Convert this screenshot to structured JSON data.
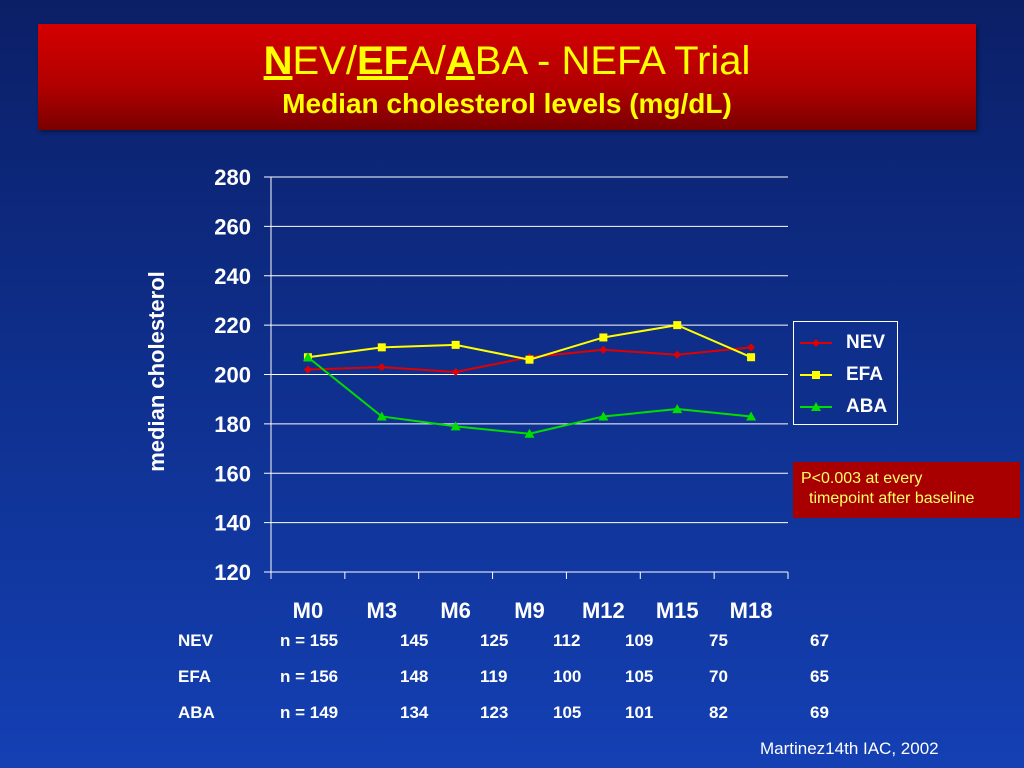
{
  "title": {
    "p1": "N",
    "p2": "EV/",
    "p3": "EF",
    "p4": "A/",
    "p5": "A",
    "p6": "BA - NEFA Trial",
    "subtitle": "Median cholesterol levels (mg/dL)"
  },
  "chart_data": {
    "type": "line",
    "categories": [
      "M0",
      "M3",
      "M6",
      "M9",
      "M12",
      "M15",
      "M18"
    ],
    "ylabel": "median cholesterol",
    "xlabel": "",
    "ylim": [
      120,
      280
    ],
    "yticks": [
      "280",
      "260",
      "240",
      "220",
      "200",
      "180",
      "160",
      "140",
      "120"
    ],
    "grid": "horizontal",
    "legend_position": "right",
    "series": [
      {
        "name": "NEV",
        "color": "#e00000",
        "marker": "diamond",
        "values": [
          202,
          203,
          201,
          207,
          210,
          208,
          211
        ]
      },
      {
        "name": "EFA",
        "color": "#ffff00",
        "marker": "square",
        "values": [
          207,
          211,
          212,
          206,
          215,
          220,
          207
        ]
      },
      {
        "name": "ABA",
        "color": "#00dd00",
        "marker": "triangle",
        "values": [
          207,
          183,
          179,
          176,
          183,
          186,
          183
        ]
      }
    ]
  },
  "annotation": {
    "line1": "P<0.003 at every",
    "line2": "timepoint after baseline"
  },
  "n_table": {
    "rows": [
      {
        "label": "NEV",
        "cells": [
          "n = 155",
          "145",
          "125",
          "112",
          "109",
          "75",
          "67"
        ]
      },
      {
        "label": "EFA",
        "cells": [
          "n = 156",
          "148",
          "119",
          "100",
          "105",
          "70",
          "65"
        ]
      },
      {
        "label": "ABA",
        "cells": [
          "n = 149",
          "134",
          "123",
          "105",
          "101",
          "82",
          "69"
        ]
      }
    ]
  },
  "citation": "Martinez14th IAC, 2002"
}
